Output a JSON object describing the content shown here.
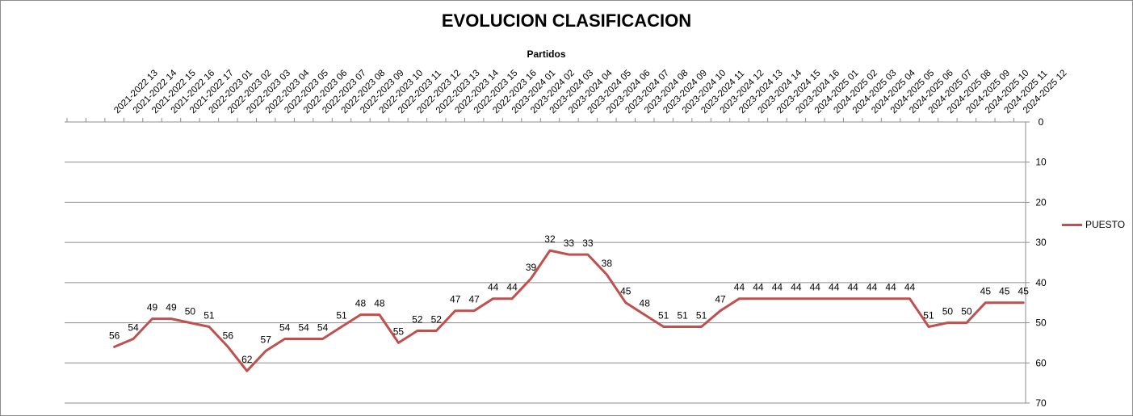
{
  "chart_data": {
    "type": "line",
    "title": "EVOLUCION CLASIFICACION",
    "xlabel": "Partidos",
    "ylabel": "",
    "y_axis_position": "right",
    "x_axis_position": "top",
    "y_reversed": true,
    "ylim": [
      0,
      70
    ],
    "yticks": [
      0,
      10,
      20,
      30,
      40,
      50,
      60,
      70
    ],
    "grid": true,
    "legend": "right",
    "line_color": "#C0504D",
    "categories": [
      "2021-2022 13",
      "2021-2022 14",
      "2021-2022 15",
      "2021-2022 16",
      "2021-2022 17",
      "2022-2023 01",
      "2022-2023 02",
      "2022-2023 03",
      "2022-2023 04",
      "2022-2023 05",
      "2022-2023 06",
      "2022-2023 07",
      "2022-2023 08",
      "2022-2023 09",
      "2022-2023 10",
      "2022-2023 11",
      "2022-2023 12",
      "2022-2023 13",
      "2022-2023 14",
      "2022-2023 15",
      "2022-2023 16",
      "2023-2024 01",
      "2023-2024 02",
      "2023-2024 03",
      "2023-2024 04",
      "2023-2024 05",
      "2023-2024 06",
      "2023-2024 07",
      "2023-2024 08",
      "2023-2024 09",
      "2023-2024 10",
      "2023-2024 11",
      "2023-2024 12",
      "2023-2024 13",
      "2023-2024 14",
      "2023-2024 15",
      "2023-2024 16",
      "2024-2025 01",
      "2024-2025 02",
      "2024-2025 03",
      "2024-2025 04",
      "2024-2025 05",
      "2024-2025 06",
      "2024-2025 07",
      "2024-2025 08",
      "2024-2025 09",
      "2024-2025 10",
      "2024-2025 11",
      "2024-2025 12"
    ],
    "series": [
      {
        "name": "PUESTO",
        "values": [
          56,
          54,
          49,
          49,
          50,
          51,
          56,
          62,
          57,
          54,
          54,
          54,
          51,
          48,
          48,
          55,
          52,
          52,
          47,
          47,
          44,
          44,
          39,
          32,
          33,
          33,
          38,
          45,
          48,
          51,
          51,
          51,
          47,
          44,
          44,
          44,
          44,
          44,
          44,
          44,
          44,
          44,
          44,
          51,
          50,
          50,
          45,
          45,
          45
        ]
      }
    ]
  }
}
